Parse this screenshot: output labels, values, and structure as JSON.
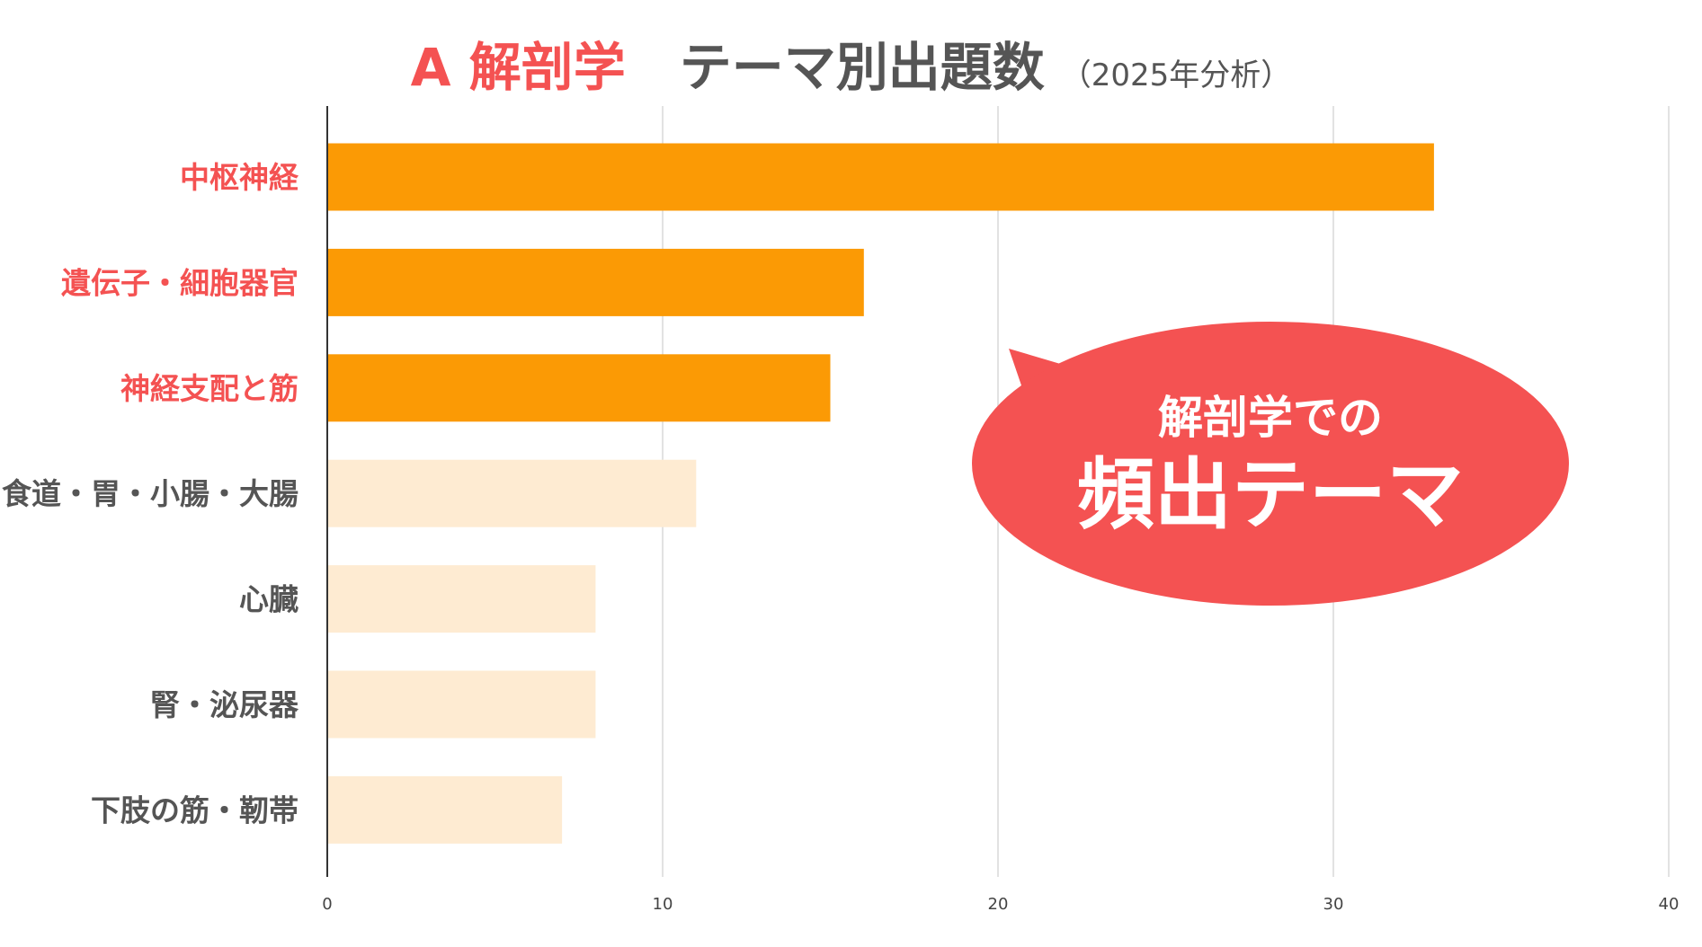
{
  "title": {
    "highlight": "A 解剖学",
    "main": "テーマ別出題数",
    "sub": "（2025年分析）"
  },
  "callout": {
    "line1": "解剖学での",
    "line2": "頻出テーマ"
  },
  "colors": {
    "highlight_bar": "#fb9a05",
    "normal_bar": "#feebd2",
    "highlight_label": "#f45252",
    "normal_label": "#555555",
    "callout": "#f45252"
  },
  "chart_data": {
    "type": "bar",
    "orientation": "horizontal",
    "title": "A 解剖学 テーマ別出題数（2025年分析）",
    "categories": [
      "中枢神経",
      "遺伝子・細胞器官",
      "神経支配と筋",
      "食道・胃・小腸・大腸",
      "心臓",
      "腎・泌尿器",
      "下肢の筋・靭帯"
    ],
    "values": [
      33,
      16,
      15,
      11,
      8,
      8,
      7
    ],
    "highlighted": [
      true,
      true,
      true,
      false,
      false,
      false,
      false
    ],
    "xlim": [
      0,
      40
    ],
    "xticks": [
      "0",
      "10",
      "20",
      "30",
      "40"
    ],
    "grid": true,
    "xlabel": "",
    "ylabel": ""
  }
}
